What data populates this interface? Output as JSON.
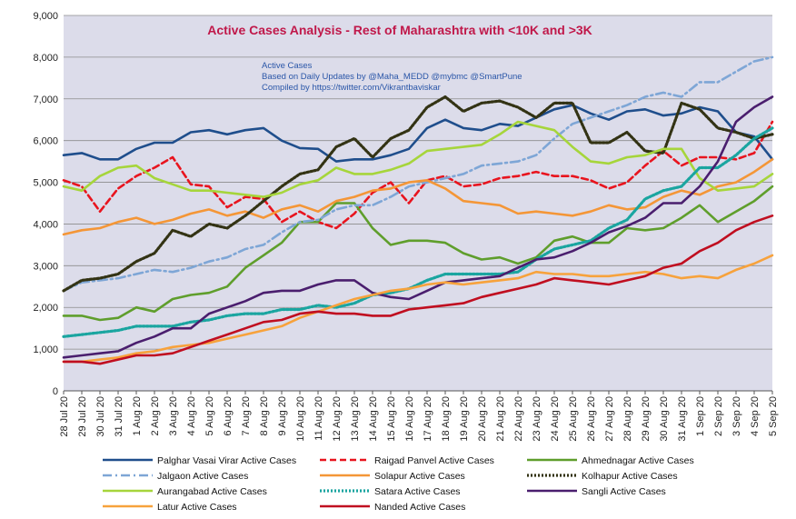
{
  "chart_data": {
    "type": "line",
    "title": "Active Cases Analysis - Rest of Maharashtra with <10K and >3K",
    "annotation": [
      "Active Cases",
      "Based on Daily Updates by @Maha_MEDD @mybmc @SmartPune",
      "Compiled by https://twitter.com/Vikrantbaviskar"
    ],
    "ylim": [
      0,
      9000
    ],
    "yticks": [
      "0",
      "1,000",
      "2,000",
      "3,000",
      "4,000",
      "5,000",
      "6,000",
      "7,000",
      "8,000",
      "9,000"
    ],
    "ytick_values": [
      0,
      1000,
      2000,
      3000,
      4000,
      5000,
      6000,
      7000,
      8000,
      9000
    ],
    "xlabels": [
      "28 Jul 20",
      "29 Jul 20",
      "30 Jul 20",
      "31 Jul 20",
      "1 Aug 20",
      "2 Aug 20",
      "3 Aug 20",
      "4 Aug 20",
      "5 Aug 20",
      "6 Aug 20",
      "7 Aug 20",
      "8 Aug 20",
      "9 Aug 20",
      "10 Aug 20",
      "11 Aug 20",
      "12 Aug 20",
      "13 Aug 20",
      "14 Aug 20",
      "15 Aug 20",
      "16 Aug 20",
      "17 Aug 20",
      "18 Aug 20",
      "19 Aug 20",
      "20 Aug 20",
      "21 Aug 20",
      "22 Aug 20",
      "23 Aug 20",
      "24 Aug 20",
      "25 Aug 20",
      "26 Aug 20",
      "27 Aug 20",
      "28 Aug 20",
      "29 Aug 20",
      "30 Aug 20",
      "31 Aug 20",
      "1 Sep 20",
      "2 Sep 20",
      "3 Sep 20",
      "4 Sep 20",
      "5 Sep 20"
    ],
    "x": [
      "2020-07-28",
      "2020-07-29",
      "2020-07-30",
      "2020-07-31",
      "2020-08-01",
      "2020-08-02",
      "2020-08-03",
      "2020-08-04",
      "2020-08-05",
      "2020-08-06",
      "2020-08-07",
      "2020-08-08",
      "2020-08-09",
      "2020-08-10",
      "2020-08-11",
      "2020-08-12",
      "2020-08-13",
      "2020-08-14",
      "2020-08-15",
      "2020-08-16",
      "2020-08-17",
      "2020-08-18",
      "2020-08-19",
      "2020-08-20",
      "2020-08-21",
      "2020-08-22",
      "2020-08-23",
      "2020-08-24",
      "2020-08-25",
      "2020-08-26",
      "2020-08-27",
      "2020-08-28",
      "2020-08-29",
      "2020-08-30",
      "2020-08-31",
      "2020-09-01",
      "2020-09-02",
      "2020-09-03",
      "2020-09-04",
      "2020-09-05"
    ],
    "x_tick_dates": [
      "2020-07-28",
      "2020-07-29",
      "2020-07-30",
      "2020-07-31",
      "2020-08-01",
      "2020-08-02",
      "2020-08-03",
      "2020-08-04",
      "2020-08-05",
      "2020-08-06",
      "2020-08-07",
      "2020-08-08",
      "2020-08-09",
      "2020-08-10",
      "2020-08-11",
      "2020-08-12",
      "2020-08-13",
      "2020-08-14",
      "2020-08-15",
      "2020-08-16",
      "2020-08-17",
      "2020-08-18",
      "2020-08-19",
      "2020-08-20",
      "2020-08-21",
      "2020-08-22",
      "2020-08-23",
      "2020-08-24",
      "2020-08-25",
      "2020-08-26",
      "2020-08-27",
      "2020-08-28",
      "2020-08-29",
      "2020-08-30",
      "2020-08-31",
      "2020-09-01",
      "2020-09-02",
      "2020-09-03",
      "2020-09-04",
      "2020-09-05"
    ],
    "grid": true,
    "legend_position": "bottom",
    "plot_background": "#dcdcea",
    "series": [
      {
        "name": "Palghar Vasai Virar Active Cases",
        "color": "#1f4e8c",
        "style": "solid",
        "values": [
          5650,
          5700,
          5550,
          5550,
          5800,
          5950,
          5950,
          6200,
          6250,
          6150,
          6250,
          6300,
          6000,
          5820,
          5800,
          5500,
          5550,
          5550,
          5650,
          5800,
          6300,
          6500,
          6300,
          6250,
          6400,
          6350,
          6550,
          6750,
          6850,
          6650,
          6500,
          6700,
          6750,
          6600,
          6650,
          6800,
          6700,
          6200,
          6100,
          5550
        ]
      },
      {
        "name": "Raigad Panvel Active Cases",
        "color": "#e8141e",
        "style": "dashed",
        "values": [
          5050,
          4900,
          4300,
          4850,
          5150,
          5350,
          5600,
          4950,
          4900,
          4400,
          4650,
          4600,
          4050,
          4300,
          4050,
          3900,
          4250,
          4750,
          5000,
          4500,
          5050,
          5150,
          4900,
          4950,
          5100,
          5150,
          5250,
          5150,
          5150,
          5050,
          4850,
          5000,
          5400,
          5750,
          5400,
          5600,
          5600,
          5550,
          5700,
          6450
        ]
      },
      {
        "name": "Ahmednagar Active Cases",
        "color": "#5f9e2c",
        "style": "solid",
        "values": [
          1800,
          1800,
          1700,
          1750,
          2000,
          1900,
          2200,
          2300,
          2350,
          2500,
          2950,
          3250,
          3550,
          4050,
          4050,
          4500,
          4500,
          3900,
          3500,
          3600,
          3600,
          3550,
          3300,
          3150,
          3200,
          3050,
          3200,
          3600,
          3700,
          3550,
          3550,
          3900,
          3850,
          3900,
          4150,
          4450,
          4050,
          4300,
          4550,
          4900
        ]
      },
      {
        "name": "Jalgaon Active Cases",
        "color": "#7ea6d6",
        "style": "dashdot",
        "values": [
          2400,
          2600,
          2650,
          2700,
          2800,
          2900,
          2850,
          2950,
          3100,
          3200,
          3400,
          3500,
          3800,
          4050,
          4100,
          4350,
          4450,
          4450,
          4650,
          4900,
          5000,
          5100,
          5200,
          5400,
          5450,
          5500,
          5650,
          6050,
          6400,
          6550,
          6700,
          6850,
          7050,
          7150,
          7050,
          7400,
          7400,
          7650,
          7900,
          8000
        ]
      },
      {
        "name": "Solapur Active Cases",
        "color": "#f49637",
        "style": "solid",
        "values": [
          3750,
          3850,
          3900,
          4050,
          4150,
          4000,
          4100,
          4250,
          4350,
          4200,
          4300,
          4150,
          4350,
          4450,
          4300,
          4550,
          4650,
          4800,
          4850,
          5000,
          5050,
          4850,
          4550,
          4500,
          4450,
          4250,
          4300,
          4250,
          4200,
          4300,
          4450,
          4350,
          4400,
          4650,
          4800,
          4700,
          4900,
          5000,
          5250,
          5550
        ]
      },
      {
        "name": "Kolhapur Active Cases",
        "color": "#333314",
        "style": "dotted",
        "values": [
          2400,
          2650,
          2700,
          2800,
          3100,
          3300,
          3850,
          3700,
          4000,
          3900,
          4200,
          4550,
          4900,
          5200,
          5300,
          5850,
          6050,
          5600,
          6050,
          6250,
          6800,
          7050,
          6700,
          6900,
          6950,
          6800,
          6550,
          6900,
          6900,
          5950,
          5950,
          6200,
          5750,
          5700,
          6900,
          6750,
          6300,
          6200,
          6050,
          6150
        ]
      },
      {
        "name": "Aurangabad Active Cases",
        "color": "#a6d53b",
        "style": "solid",
        "values": [
          4900,
          4800,
          5150,
          5350,
          5400,
          5100,
          4950,
          4800,
          4800,
          4750,
          4700,
          4650,
          4750,
          4950,
          5050,
          5350,
          5200,
          5200,
          5300,
          5450,
          5750,
          5800,
          5850,
          5900,
          6150,
          6450,
          6350,
          6250,
          5850,
          5500,
          5450,
          5600,
          5650,
          5800,
          5800,
          5100,
          4800,
          4850,
          4900,
          5200
        ]
      },
      {
        "name": "Satara Active Cases",
        "color": "#1aa5a0",
        "style": "dotted",
        "values": [
          1300,
          1350,
          1400,
          1450,
          1550,
          1550,
          1550,
          1650,
          1700,
          1800,
          1850,
          1850,
          1950,
          1950,
          2050,
          2000,
          2100,
          2300,
          2350,
          2450,
          2650,
          2800,
          2800,
          2800,
          2800,
          2850,
          3150,
          3400,
          3500,
          3600,
          3900,
          4100,
          4600,
          4800,
          4900,
          5350,
          5350,
          5650,
          6050,
          6300
        ]
      },
      {
        "name": "Sangli Active Cases",
        "color": "#4a1e6e",
        "style": "solid",
        "values": [
          800,
          850,
          900,
          950,
          1150,
          1300,
          1500,
          1500,
          1850,
          2000,
          2150,
          2350,
          2400,
          2400,
          2550,
          2650,
          2650,
          2350,
          2250,
          2200,
          2400,
          2600,
          2650,
          2700,
          2750,
          2950,
          3150,
          3200,
          3350,
          3550,
          3800,
          3950,
          4150,
          4500,
          4500,
          4900,
          5500,
          6450,
          6800,
          7050
        ]
      },
      {
        "name": "Latur Active Cases",
        "color": "#f7a23c",
        "style": "solid",
        "values": [
          700,
          700,
          750,
          800,
          900,
          950,
          1050,
          1100,
          1150,
          1250,
          1350,
          1450,
          1550,
          1750,
          1900,
          2050,
          2200,
          2300,
          2400,
          2450,
          2550,
          2600,
          2550,
          2600,
          2650,
          2700,
          2850,
          2800,
          2800,
          2750,
          2750,
          2800,
          2850,
          2800,
          2700,
          2750,
          2700,
          2900,
          3050,
          3250
        ]
      },
      {
        "name": "Nanded Active Cases",
        "color": "#c00e20",
        "style": "solid",
        "values": [
          700,
          700,
          650,
          750,
          850,
          850,
          900,
          1050,
          1200,
          1350,
          1500,
          1650,
          1700,
          1850,
          1900,
          1850,
          1850,
          1800,
          1800,
          1950,
          2000,
          2050,
          2100,
          2250,
          2350,
          2450,
          2550,
          2700,
          2650,
          2600,
          2550,
          2650,
          2750,
          2950,
          3050,
          3350,
          3550,
          3850,
          4050,
          4200
        ]
      }
    ]
  }
}
